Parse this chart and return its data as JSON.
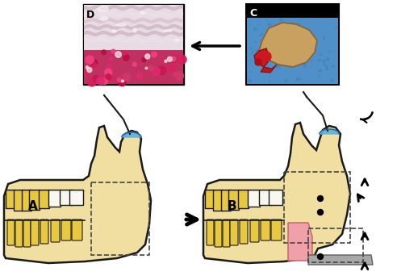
{
  "background_color": "#ffffff",
  "label_A": "A",
  "label_B": "B",
  "label_C": "C",
  "label_D": "D",
  "jaw_fill_color": "#f0dfa0",
  "jaw_outline_color": "#1a1a1a",
  "teeth_fill": "#e8c840",
  "teeth_white": "#f8f8f0",
  "pink_fill": "#f0a0a8",
  "gray_fill": "#a8a8a8",
  "blue_element": "#60b0e0",
  "dashed_color": "#444444",
  "fig_width": 4.92,
  "fig_height": 3.42,
  "dpi": 100
}
